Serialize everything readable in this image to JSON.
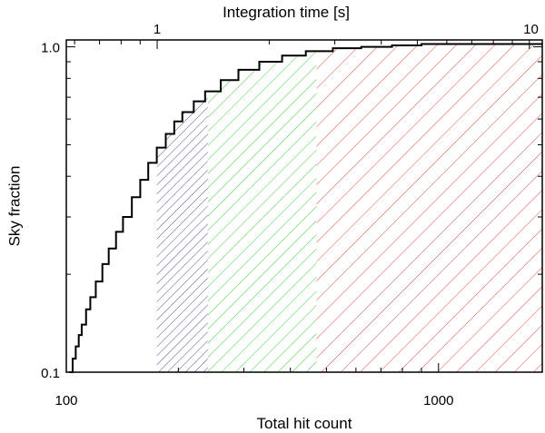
{
  "chart_data": {
    "type": "line",
    "title": "",
    "xlabel": "Total hit count",
    "ylabel": "Sky fraction",
    "x2label": "Integration time [s]",
    "xscale": "log",
    "yscale": "log",
    "xlim": [
      100,
      1900
    ],
    "ylim": [
      0.1,
      1.05
    ],
    "x_ticks": [
      100,
      1000
    ],
    "x_tick_labels": [
      "100",
      "1000"
    ],
    "x2_ticks": [
      1,
      10
    ],
    "x2_tick_labels": [
      "1",
      "10"
    ],
    "x2_per_hit": 0.0057,
    "y_ticks": [
      0.1,
      1.0
    ],
    "y_tick_labels": [
      "0.1",
      "1.0"
    ],
    "grid": false,
    "series": [
      {
        "style": "step",
        "color": "#000000",
        "x": [
          102,
          104,
          106,
          108,
          110,
          113,
          116,
          120,
          125,
          130,
          136,
          142,
          150,
          158,
          166,
          175,
          185,
          195,
          205,
          220,
          236,
          260,
          290,
          330,
          380,
          440,
          520,
          620,
          750,
          900,
          1100,
          1400,
          1900
        ],
        "y": [
          0.1,
          0.11,
          0.12,
          0.13,
          0.14,
          0.156,
          0.17,
          0.19,
          0.215,
          0.24,
          0.27,
          0.3,
          0.345,
          0.39,
          0.44,
          0.49,
          0.54,
          0.59,
          0.63,
          0.68,
          0.73,
          0.79,
          0.85,
          0.9,
          0.94,
          0.97,
          0.99,
          1.0,
          1.01,
          1.02,
          1.02,
          1.02,
          1.02
        ]
      }
    ],
    "shaded_regions": [
      {
        "x_start": 175,
        "x_end": 240,
        "color": "#3c3c8c",
        "hatch": "diagonal"
      },
      {
        "x_start": 240,
        "x_end": 470,
        "color": "#22cc22",
        "hatch": "diagonal"
      },
      {
        "x_start": 470,
        "x_end": 1900,
        "color": "#dd3333",
        "hatch": "diagonal"
      }
    ]
  }
}
